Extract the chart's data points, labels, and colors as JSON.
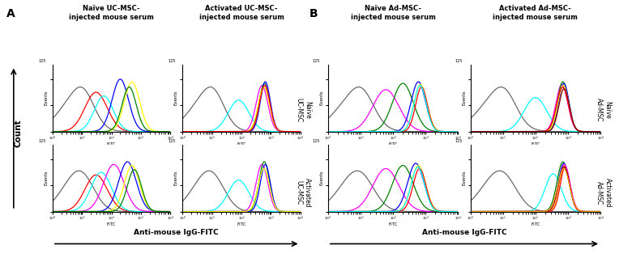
{
  "panel_A_title_left": "Naïve UC-MSC-\ninjected mouse serum",
  "panel_A_title_right": "Activated UC-MSC-\ninjected mouse serum",
  "panel_B_title_left": "Naïve Ad-MSC-\ninjected mouse serum",
  "panel_B_title_right": "Activated Ad-MSC-\ninjected mouse serum",
  "row_label_top_A": "Naïve\nUC-MSC",
  "row_label_bot_A": "Activated\nUC-MSC",
  "row_label_top_B": "Naïve\nAd-MSC",
  "row_label_bot_B": "Activated\nAd-MSC",
  "ylabel_left": "Count",
  "xlabel": "Anti-mouse IgG-FITC",
  "y_axis_label_plots": "Events",
  "x_axis_label_plots": "FITC",
  "background_color": "#ffffff",
  "plots": {
    "A00": {
      "gray": [
        5,
        0.55,
        55,
        12,
        0.35,
        38
      ],
      "peaks": [
        [
          30,
          0.38,
          75,
          "red"
        ],
        [
          55,
          0.32,
          68,
          "cyan"
        ],
        [
          200,
          0.28,
          100,
          "blue"
        ],
        [
          500,
          0.26,
          95,
          "yellow"
        ],
        [
          400,
          0.24,
          85,
          "green"
        ]
      ]
    },
    "A01": {
      "gray": [
        5,
        0.55,
        55,
        12,
        0.35,
        38
      ],
      "peaks": [
        [
          80,
          0.35,
          60,
          "cyan"
        ],
        [
          500,
          0.2,
          88,
          "magenta"
        ],
        [
          600,
          0.18,
          92,
          "green"
        ],
        [
          650,
          0.17,
          95,
          "blue"
        ],
        [
          580,
          0.19,
          85,
          "yellow"
        ],
        [
          620,
          0.18,
          88,
          "red"
        ]
      ]
    },
    "A10": {
      "gray": [
        5,
        0.5,
        50,
        12,
        0.4,
        35
      ],
      "peaks": [
        [
          30,
          0.38,
          70,
          "red"
        ],
        [
          45,
          0.35,
          75,
          "cyan"
        ],
        [
          120,
          0.35,
          90,
          "magenta"
        ],
        [
          350,
          0.3,
          95,
          "blue"
        ],
        [
          500,
          0.26,
          88,
          "yellow"
        ],
        [
          600,
          0.24,
          80,
          "green"
        ]
      ]
    },
    "A11": {
      "gray": [
        5,
        0.5,
        50,
        12,
        0.4,
        35
      ],
      "peaks": [
        [
          80,
          0.35,
          60,
          "cyan"
        ],
        [
          500,
          0.2,
          90,
          "magenta"
        ],
        [
          600,
          0.18,
          95,
          "green"
        ],
        [
          650,
          0.17,
          90,
          "blue"
        ],
        [
          580,
          0.19,
          82,
          "yellow"
        ]
      ]
    },
    "B00": {
      "gray": [
        5,
        0.55,
        55,
        12,
        0.35,
        38
      ],
      "peaks": [
        [
          60,
          0.4,
          80,
          "magenta"
        ],
        [
          200,
          0.32,
          92,
          "green"
        ],
        [
          600,
          0.22,
          95,
          "blue"
        ],
        [
          700,
          0.2,
          90,
          "yellow"
        ],
        [
          750,
          0.18,
          85,
          "red"
        ],
        [
          680,
          0.19,
          88,
          "cyan"
        ]
      ]
    },
    "B01": {
      "gray": [
        5,
        0.55,
        55,
        12,
        0.35,
        38
      ],
      "peaks": [
        [
          100,
          0.35,
          65,
          "cyan"
        ],
        [
          650,
          0.18,
          90,
          "magenta"
        ],
        [
          700,
          0.17,
          95,
          "green"
        ],
        [
          750,
          0.16,
          92,
          "blue"
        ],
        [
          720,
          0.17,
          88,
          "yellow"
        ],
        [
          680,
          0.18,
          85,
          "red"
        ],
        [
          760,
          0.16,
          82,
          "darkred"
        ]
      ]
    },
    "B10": {
      "gray": [
        5,
        0.5,
        50,
        12,
        0.4,
        35
      ],
      "peaks": [
        [
          60,
          0.4,
          82,
          "magenta"
        ],
        [
          200,
          0.32,
          88,
          "green"
        ],
        [
          500,
          0.25,
          92,
          "blue"
        ],
        [
          600,
          0.22,
          88,
          "yellow"
        ],
        [
          650,
          0.2,
          82,
          "red"
        ],
        [
          580,
          0.21,
          85,
          "cyan"
        ]
      ]
    },
    "B11": {
      "gray": [
        5,
        0.5,
        50,
        12,
        0.4,
        35
      ],
      "peaks": [
        [
          350,
          0.25,
          72,
          "cyan"
        ],
        [
          700,
          0.18,
          95,
          "green"
        ],
        [
          750,
          0.17,
          92,
          "blue"
        ],
        [
          800,
          0.16,
          88,
          "yellow"
        ],
        [
          820,
          0.15,
          85,
          "red"
        ],
        [
          780,
          0.17,
          90,
          "magenta"
        ],
        [
          760,
          0.17,
          86,
          "darkred"
        ],
        [
          740,
          0.18,
          82,
          "orange"
        ]
      ]
    }
  }
}
